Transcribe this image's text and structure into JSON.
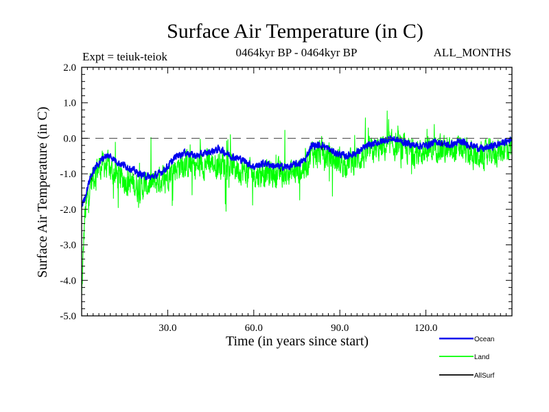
{
  "chart_data": {
    "type": "line",
    "title": "Surface Air Temperature (in C)",
    "subtitle_left": "Expt = teiuk-teiok",
    "subtitle_center": "0464kyr BP - 0464kyr BP",
    "subtitle_right": "ALL_MONTHS",
    "xlabel": "Time (in years since start)",
    "ylabel": "Surface Air Temperature (in C)",
    "xlim": [
      0,
      150
    ],
    "ylim": [
      -5.0,
      2.0
    ],
    "x_ticks": [
      30,
      60,
      90,
      120
    ],
    "x_tick_labels": [
      "30.0",
      "60.0",
      "90.0",
      "120.0"
    ],
    "y_ticks": [
      -5,
      -4,
      -3,
      -2,
      -1,
      0,
      1,
      2
    ],
    "y_tick_labels": [
      "-5.0",
      "-4.0",
      "-3.0",
      "-2.0",
      "-1.0",
      "0.0",
      "1.0",
      "2.0"
    ],
    "reference_line": 0.0,
    "legend_position": "bottom-right, below plot",
    "series": [
      {
        "name": "Ocean",
        "color": "#0000ee",
        "x": [
          0,
          1,
          2,
          3,
          5,
          8,
          10,
          13,
          16,
          20,
          24,
          27,
          30,
          33,
          36,
          40,
          44,
          48,
          52,
          56,
          60,
          64,
          68,
          72,
          76,
          78,
          80,
          84,
          88,
          92,
          96,
          100,
          104,
          108,
          112,
          116,
          120,
          124,
          128,
          132,
          136,
          140,
          144,
          148,
          150
        ],
        "values": [
          -1.9,
          -1.7,
          -1.4,
          -1.1,
          -0.8,
          -0.5,
          -0.5,
          -0.7,
          -0.8,
          -1.0,
          -1.1,
          -1.0,
          -0.8,
          -0.5,
          -0.4,
          -0.5,
          -0.4,
          -0.3,
          -0.5,
          -0.6,
          -0.8,
          -0.7,
          -0.8,
          -0.8,
          -0.7,
          -0.6,
          -0.2,
          -0.2,
          -0.4,
          -0.5,
          -0.4,
          -0.2,
          -0.1,
          0.0,
          -0.1,
          -0.2,
          -0.2,
          -0.1,
          -0.2,
          -0.1,
          -0.2,
          -0.3,
          -0.2,
          -0.1,
          0.0
        ]
      },
      {
        "name": "Land",
        "color": "#00ff00",
        "x": [
          0,
          1,
          2,
          3,
          5,
          8,
          10,
          13,
          16,
          20,
          24,
          27,
          30,
          33,
          36,
          40,
          44,
          48,
          52,
          56,
          60,
          64,
          68,
          72,
          76,
          78,
          80,
          84,
          88,
          92,
          96,
          100,
          104,
          108,
          112,
          116,
          120,
          124,
          128,
          132,
          136,
          140,
          144,
          148,
          150
        ],
        "values": [
          -4.5,
          -2.3,
          -1.7,
          -1.3,
          -0.9,
          -0.7,
          -0.9,
          -1.1,
          -1.2,
          -1.4,
          -1.3,
          -1.2,
          -1.0,
          -0.8,
          -0.7,
          -0.8,
          -0.7,
          -0.7,
          -0.8,
          -0.9,
          -1.0,
          -1.0,
          -1.0,
          -1.0,
          -0.9,
          -0.8,
          -0.4,
          -0.4,
          -0.6,
          -0.7,
          -0.6,
          -0.4,
          -0.3,
          -0.2,
          -0.3,
          -0.4,
          -0.4,
          -0.2,
          -0.4,
          -0.3,
          -0.5,
          -0.5,
          -0.4,
          -0.3,
          -0.2
        ],
        "variability": 0.55
      },
      {
        "name": "AllSurf",
        "color": "#000000",
        "x": [
          0,
          1,
          2,
          3,
          5,
          8,
          10,
          13,
          16,
          20,
          24,
          27,
          30,
          33,
          36,
          40,
          44,
          48,
          52,
          56,
          60,
          64,
          68,
          72,
          76,
          78,
          80,
          84,
          88,
          92,
          96,
          100,
          104,
          108,
          112,
          116,
          120,
          124,
          128,
          132,
          136,
          140,
          144,
          148,
          150
        ],
        "values": [
          -2.2,
          -1.8,
          -1.5,
          -1.2,
          -0.85,
          -0.55,
          -0.6,
          -0.8,
          -0.9,
          -1.1,
          -1.15,
          -1.05,
          -0.85,
          -0.6,
          -0.5,
          -0.6,
          -0.5,
          -0.45,
          -0.6,
          -0.7,
          -0.85,
          -0.8,
          -0.85,
          -0.85,
          -0.75,
          -0.65,
          -0.25,
          -0.25,
          -0.45,
          -0.55,
          -0.45,
          -0.25,
          -0.15,
          -0.05,
          -0.15,
          -0.25,
          -0.25,
          -0.15,
          -0.25,
          -0.15,
          -0.3,
          -0.35,
          -0.25,
          -0.15,
          -0.05
        ]
      }
    ]
  }
}
